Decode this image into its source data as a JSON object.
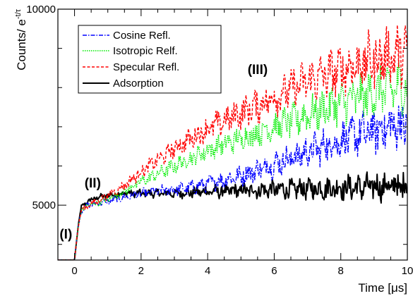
{
  "chart_data": {
    "type": "line",
    "xlabel": "Time [μs]",
    "ylabel": "Counts/ e^{-t/τ}",
    "ylabel_main": "Counts/ e",
    "ylabel_sup": "-t/τ",
    "xlim": [
      -0.5,
      10.0
    ],
    "ylim": [
      3600,
      10000
    ],
    "x_ticks": [
      0,
      2,
      4,
      6,
      8,
      10
    ],
    "x_tick_labels": [
      "0",
      "2",
      "4",
      "6",
      "8",
      "10"
    ],
    "y_ticks": [
      5000,
      10000
    ],
    "y_tick_labels": [
      "5000",
      "10000"
    ],
    "grid": false,
    "legend_position": "top-left",
    "annotations": [
      {
        "text": "(I)",
        "x": -0.45,
        "y": 4150
      },
      {
        "text": "(II)",
        "x": 0.3,
        "y": 5450
      },
      {
        "text": "(III)",
        "x": 5.2,
        "y": 8350
      }
    ],
    "series": [
      {
        "name": "Cosine Refl.",
        "color": "#0000ff",
        "dash": "6,2,1.5,2",
        "x": [
          -0.5,
          0.0,
          0.1,
          0.2,
          0.4,
          0.7,
          1.0,
          1.5,
          2.0,
          2.5,
          3.0,
          3.5,
          4.0,
          4.5,
          5.0,
          5.5,
          6.0,
          6.5,
          7.0,
          7.5,
          8.0,
          8.5,
          9.0,
          9.5,
          10.0
        ],
        "values": [
          3600,
          3600,
          4400,
          4850,
          5000,
          5050,
          5100,
          5200,
          5300,
          5350,
          5400,
          5450,
          5550,
          5650,
          5750,
          5900,
          6050,
          6200,
          6350,
          6500,
          6650,
          6800,
          6900,
          7000,
          7100
        ],
        "noise": [
          0,
          0,
          40,
          60,
          80,
          80,
          90,
          100,
          120,
          140,
          160,
          180,
          200,
          230,
          260,
          300,
          340,
          380,
          420,
          460,
          500,
          550,
          600,
          650,
          700
        ]
      },
      {
        "name": "Isotropic Relf.",
        "color": "#00ee00",
        "dash": "1.5,1.5",
        "x": [
          -0.5,
          0.0,
          0.1,
          0.2,
          0.4,
          0.7,
          1.0,
          1.5,
          2.0,
          2.5,
          3.0,
          3.5,
          4.0,
          4.5,
          5.0,
          5.5,
          6.0,
          6.5,
          7.0,
          7.5,
          8.0,
          8.5,
          9.0,
          9.5,
          10.0
        ],
        "values": [
          3600,
          3600,
          4400,
          4850,
          5000,
          5050,
          5150,
          5350,
          5600,
          5800,
          6000,
          6200,
          6400,
          6550,
          6700,
          6850,
          7000,
          7150,
          7300,
          7450,
          7600,
          7750,
          7850,
          7950,
          8050
        ],
        "noise": [
          0,
          0,
          40,
          60,
          80,
          80,
          90,
          110,
          140,
          170,
          200,
          230,
          260,
          290,
          320,
          350,
          380,
          420,
          460,
          500,
          540,
          580,
          620,
          660,
          700
        ]
      },
      {
        "name": "Specular Refl.",
        "color": "#ff0000",
        "dash": "4,2.5",
        "x": [
          -0.5,
          0.0,
          0.1,
          0.2,
          0.4,
          0.7,
          1.0,
          1.5,
          2.0,
          2.5,
          3.0,
          3.5,
          4.0,
          4.5,
          5.0,
          5.5,
          6.0,
          6.5,
          7.0,
          7.5,
          8.0,
          8.5,
          9.0,
          9.5,
          10.0
        ],
        "values": [
          3600,
          3600,
          4400,
          4850,
          5000,
          5100,
          5250,
          5500,
          5850,
          6150,
          6450,
          6700,
          6950,
          7150,
          7350,
          7550,
          7750,
          7950,
          8150,
          8300,
          8450,
          8600,
          8700,
          8800,
          8900
        ],
        "noise": [
          0,
          0,
          40,
          60,
          80,
          90,
          100,
          130,
          170,
          200,
          240,
          280,
          320,
          360,
          400,
          440,
          480,
          520,
          560,
          600,
          640,
          680,
          720,
          760,
          800
        ]
      },
      {
        "name": "Adsorption",
        "color": "#000000",
        "dash": "",
        "x": [
          -0.5,
          0.0,
          0.1,
          0.2,
          0.4,
          0.7,
          1.0,
          1.5,
          2.0,
          2.5,
          3.0,
          3.5,
          4.0,
          4.5,
          5.0,
          5.5,
          6.0,
          6.5,
          7.0,
          7.5,
          8.0,
          8.5,
          9.0,
          9.5,
          10.0
        ],
        "values": [
          3600,
          3600,
          4400,
          4950,
          5100,
          5200,
          5250,
          5300,
          5300,
          5300,
          5300,
          5320,
          5350,
          5350,
          5370,
          5380,
          5400,
          5400,
          5420,
          5430,
          5450,
          5450,
          5470,
          5480,
          5500
        ],
        "noise": [
          0,
          0,
          30,
          50,
          60,
          70,
          80,
          90,
          100,
          110,
          120,
          140,
          160,
          180,
          200,
          220,
          240,
          260,
          280,
          300,
          320,
          340,
          360,
          380,
          400
        ]
      }
    ]
  }
}
